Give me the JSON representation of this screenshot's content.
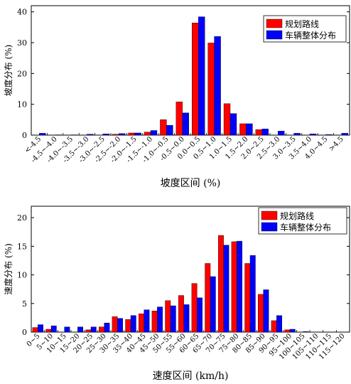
{
  "chart_data": [
    {
      "type": "bar",
      "xlabel": "坡度区间 (%)",
      "ylabel": "坡度分布 (%)",
      "ylim": [
        0,
        42
      ],
      "yticks": [
        0,
        10,
        20,
        30,
        40
      ],
      "legend_position": "top-right",
      "categories": [
        "<-4.5",
        "-4.5~-4.0",
        "-4.0~-3.5",
        "-3.5~-3.0",
        "-3.0~-2.5",
        "-2.5~-2.0",
        "-2.0~-1.5",
        "-1.5~-1.0",
        "-1.0~-0.5",
        "-0.5~0.0",
        "0.0~0.5",
        "0.5~1.0",
        "1.0~1.5",
        "1.5~2.0",
        "2.0~2.5",
        "2.5~3.0",
        "3.0~3.5",
        "3.5~4.0",
        "4.0~4.5",
        ">4.5"
      ],
      "series": [
        {
          "name": "规划路线",
          "color": "#ff0000",
          "values": [
            0,
            0,
            0,
            0,
            0,
            0.3,
            0.7,
            1.0,
            5.0,
            10.8,
            36.4,
            29.9,
            10.2,
            3.7,
            1.8,
            0,
            0,
            0,
            0,
            0
          ]
        },
        {
          "name": "车辆整体分布",
          "color": "#0000ff",
          "values": [
            0.6,
            0.1,
            0.1,
            0.3,
            0.4,
            0.5,
            0.7,
            1.5,
            3.2,
            7.2,
            38.4,
            32.0,
            7.0,
            3.7,
            2.0,
            1.3,
            0.6,
            0.4,
            0.2,
            0.6
          ]
        }
      ]
    },
    {
      "type": "bar",
      "xlabel": "速度区间 (km/h)",
      "ylabel": "速度分布 (%)",
      "ylim": [
        0,
        22
      ],
      "yticks": [
        0,
        5,
        10,
        15,
        20
      ],
      "legend_position": "top-right",
      "categories": [
        "0~5",
        "5~10",
        "10~15",
        "15~20",
        "20~25",
        "25~30",
        "30~35",
        "35~40",
        "40~45",
        "45~50",
        "50~55",
        "55~60",
        "60~65",
        "65~70",
        "70~75",
        "75~80",
        "80~85",
        "85~90",
        "90~95",
        "95~100",
        "100~105",
        "105~110",
        "110~115",
        "115~120"
      ],
      "series": [
        {
          "name": "规划路线",
          "color": "#ff0000",
          "values": [
            0.8,
            0.5,
            0,
            0,
            0.4,
            0.9,
            2.7,
            2.2,
            3.2,
            3.7,
            5.5,
            6.4,
            8.5,
            12.0,
            16.9,
            15.8,
            12.0,
            6.6,
            2.0,
            0.4,
            0,
            0,
            0,
            0
          ]
        },
        {
          "name": "车辆整体分布",
          "color": "#0000ff",
          "values": [
            1.3,
            1.1,
            0.9,
            0.9,
            0.9,
            1.6,
            2.4,
            2.9,
            3.9,
            4.4,
            4.6,
            4.8,
            6.0,
            9.7,
            15.2,
            15.9,
            13.4,
            7.4,
            2.9,
            0.5,
            0.1,
            0,
            0,
            0
          ]
        }
      ]
    }
  ]
}
